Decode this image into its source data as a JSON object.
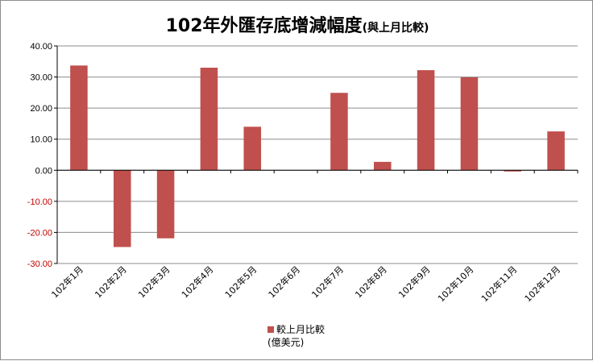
{
  "chart_data": {
    "type": "bar",
    "title": "102年外匯存底增減幅度",
    "subtitle": "(與上月比較)",
    "categories": [
      "102年1月",
      "102年2月",
      "102年3月",
      "102年4月",
      "102年5月",
      "102年6月",
      "102年7月",
      "102年8月",
      "102年9月",
      "102年10月",
      "102年11月",
      "102年12月"
    ],
    "series": [
      {
        "name": "較上月比較",
        "unit": "(億美元)",
        "values": [
          33.7,
          -24.7,
          -21.9,
          33.0,
          14.0,
          0.0,
          24.9,
          2.7,
          32.2,
          29.9,
          -0.4,
          12.5
        ]
      }
    ],
    "ylim": [
      -30,
      40
    ],
    "yticks": [
      "40.00",
      "30.00",
      "20.00",
      "10.00",
      "0.00",
      "-10.00",
      "-20.00",
      "-30.00"
    ],
    "grid": true,
    "legend": "bottom",
    "colors": {
      "bar": "#c0504d",
      "grid": "#8c8c8c",
      "negative_tick": "#c00000"
    }
  }
}
